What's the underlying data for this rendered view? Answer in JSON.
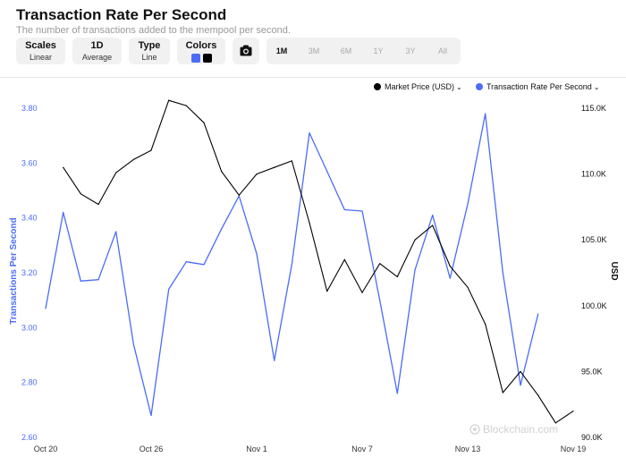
{
  "header": {
    "title": "Transaction Rate Per Second",
    "subtitle": "The number of transactions added to the mempool per second."
  },
  "controls": {
    "scales": {
      "label": "Scales",
      "value": "Linear"
    },
    "period": {
      "label": "1D",
      "value": "Average"
    },
    "type": {
      "label": "Type",
      "value": "Line"
    },
    "colors": {
      "label": "Colors",
      "swatch1": "#4a6cf7",
      "swatch2": "#000000"
    },
    "camera_icon": "camera-icon",
    "ranges": [
      "1M",
      "3M",
      "6M",
      "1Y",
      "3Y",
      "All"
    ],
    "active_range": "1M"
  },
  "legend": {
    "market_price": "Market Price (USD)",
    "tx_rate": "Transaction Rate Per Second"
  },
  "watermark": "Blockchain.com",
  "colors": {
    "tx": "#4a6cf7",
    "price": "#000000",
    "left_axis": "#4a6cf7"
  },
  "chart_data": {
    "type": "line",
    "x": [
      "Oct 20",
      "Oct 21",
      "Oct 22",
      "Oct 23",
      "Oct 24",
      "Oct 25",
      "Oct 26",
      "Oct 27",
      "Oct 28",
      "Oct 29",
      "Oct 30",
      "Oct 31",
      "Nov 1",
      "Nov 2",
      "Nov 3",
      "Nov 4",
      "Nov 5",
      "Nov 6",
      "Nov 7",
      "Nov 8",
      "Nov 9",
      "Nov 10",
      "Nov 11",
      "Nov 12",
      "Nov 13",
      "Nov 14",
      "Nov 15",
      "Nov 16",
      "Nov 17",
      "Nov 18",
      "Nov 19"
    ],
    "x_tick_labels": [
      "Oct 20",
      "Oct 26",
      "Nov 1",
      "Nov 7",
      "Nov 13",
      "Nov 19"
    ],
    "series": [
      {
        "name": "Transaction Rate Per Second",
        "axis": "left",
        "values": [
          3.07,
          3.42,
          3.17,
          3.175,
          3.35,
          2.94,
          2.68,
          3.14,
          3.24,
          3.23,
          3.36,
          3.48,
          3.27,
          2.88,
          3.23,
          3.71,
          3.57,
          3.43,
          3.425,
          3.1,
          2.76,
          3.21,
          3.41,
          3.18,
          3.45,
          3.78,
          3.2,
          2.79,
          3.05,
          null,
          null
        ]
      },
      {
        "name": "Market Price (USD)",
        "axis": "right",
        "values": [
          null,
          110.5,
          108.5,
          107.7,
          110.1,
          111.1,
          111.8,
          115.6,
          115.2,
          113.9,
          110.2,
          108.4,
          110.0,
          110.5,
          111.0,
          106.3,
          101.1,
          103.5,
          101.0,
          103.2,
          102.2,
          105.0,
          106.1,
          103.0,
          101.4,
          98.6,
          93.4,
          95.0,
          93.2,
          91.1,
          92.0
        ]
      }
    ],
    "y_left": {
      "label": "Transactions Per Second",
      "ylim": [
        2.6,
        3.8
      ],
      "ticks": [
        "2.60",
        "2.80",
        "3.00",
        "3.20",
        "3.40",
        "3.60",
        "3.80"
      ]
    },
    "y_right": {
      "label": "USD",
      "ylim": [
        90000,
        115000
      ],
      "ticks": [
        "90.0K",
        "95.0K",
        "100.0K",
        "105.0K",
        "110.0K",
        "115.0K"
      ]
    },
    "grid": false,
    "legend_position": "top-right"
  }
}
